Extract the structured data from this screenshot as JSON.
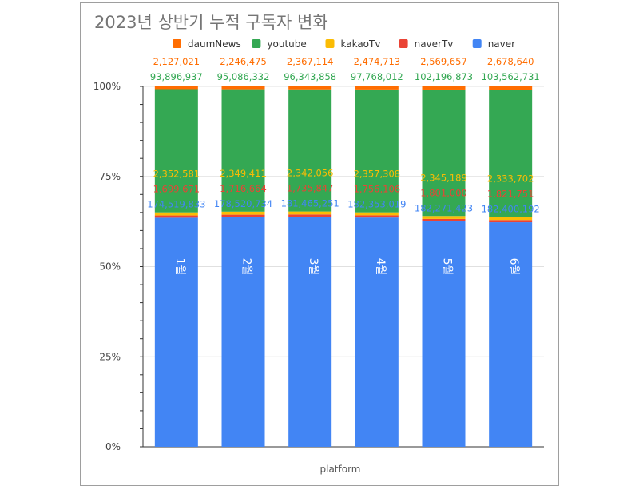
{
  "chart_data": {
    "type": "bar",
    "stacked": "percent",
    "title": "2023년 상반기 누적 구독자 변화",
    "xlabel": "platform",
    "ylabel": "",
    "ylim": [
      0,
      100
    ],
    "yticks": [
      "0%",
      "25%",
      "50%",
      "75%",
      "100%"
    ],
    "categories": [
      "1월",
      "2월",
      "3월",
      "4월",
      "5월",
      "6월"
    ],
    "legend_position": "top",
    "series": [
      {
        "name": "naver",
        "color": "#4285f4",
        "values": [
          174519833,
          178520734,
          181465251,
          182353019,
          182271423,
          182400192
        ]
      },
      {
        "name": "naverTv",
        "color": "#ea4335",
        "values": [
          1699671,
          1716664,
          1735847,
          1756106,
          1801000,
          1821751
        ]
      },
      {
        "name": "kakaoTv",
        "color": "#fbbc04",
        "values": [
          2352581,
          2349411,
          2342056,
          2357308,
          2345189,
          2333702
        ]
      },
      {
        "name": "youtube",
        "color": "#34a853",
        "values": [
          93896937,
          95086332,
          96343858,
          97768012,
          102196873,
          103562731
        ]
      },
      {
        "name": "daumNews",
        "color": "#ff6d01",
        "values": [
          2127021,
          2246475,
          2367114,
          2474713,
          2569657,
          2678640
        ]
      }
    ],
    "labels": {
      "naver": [
        "174,519,833",
        "178,520,734",
        "181,465,251",
        "182,353,019",
        "182,271,423",
        "182,400,192"
      ],
      "naverTv": [
        "1,699,671",
        "1,716,664",
        "1,735,847",
        "1,756,106",
        "1,801,000",
        "1,821,751"
      ],
      "kakaoTv": [
        "2,352,581",
        "2,349,411",
        "2,342,056",
        "2,357,308",
        "2,345,189",
        "2,333,702"
      ],
      "youtube": [
        "93,896,937",
        "95,086,332",
        "96,343,858",
        "97,768,012",
        "102,196,873",
        "103,562,731"
      ],
      "daumNews": [
        "2,127,021",
        "2,246,475",
        "2,367,114",
        "2,474,713",
        "2,569,657",
        "2,678,640"
      ]
    }
  }
}
